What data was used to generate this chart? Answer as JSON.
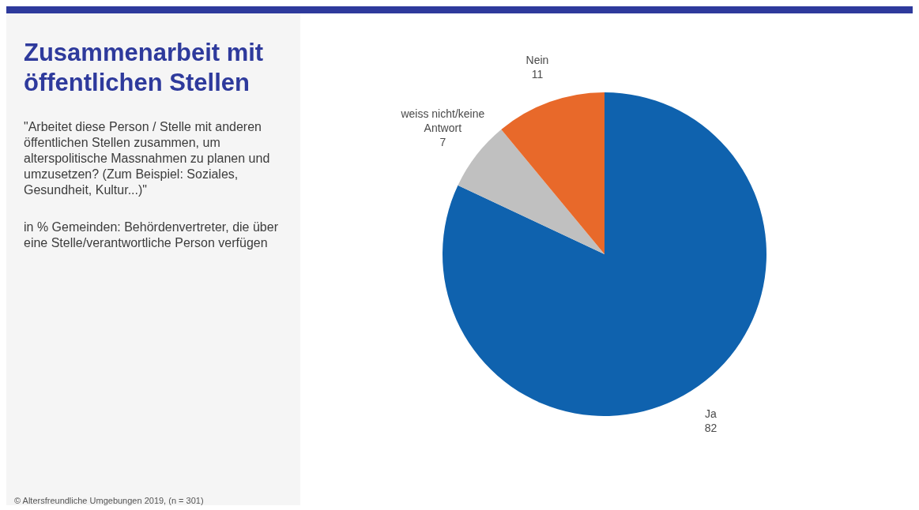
{
  "chart_data": {
    "type": "pie",
    "title": "Zusammenarbeit mit öffentlichen Stellen",
    "subtitle": "\"Arbeitet diese Person / Stelle mit anderen öffentlichen Stellen zusammen, um alterspolitische Massnahmen zu planen und umzusetzen? (Zum Beispiel: Soziales, Gesundheit, Kultur...)\"",
    "annotations": [
      "in % Gemeinden: Behördenvertreter, die über eine Stelle/verantwortliche Person verfügen",
      "© Altersfreundliche Umgebungen 2019, (n = 301)"
    ],
    "categories": [
      "Ja",
      "weiss nicht/keine Antwort",
      "Nein"
    ],
    "values": [
      82,
      7,
      11
    ],
    "colors": [
      "#0f62ae",
      "#c0c0c0",
      "#e8692a"
    ],
    "data_labels": true
  }
}
